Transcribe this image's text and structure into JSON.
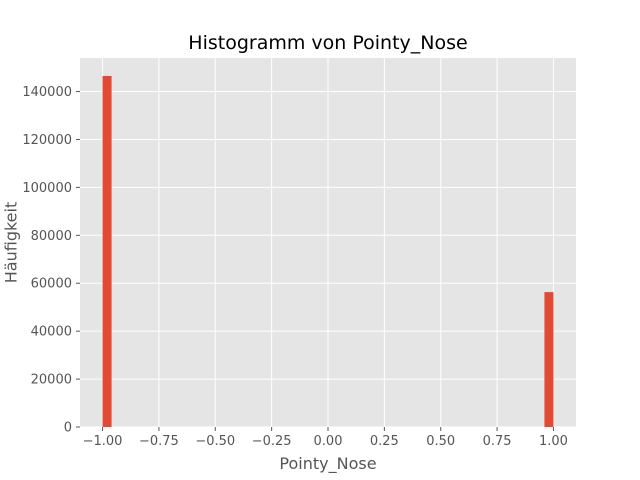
{
  "chart_data": {
    "type": "bar",
    "title": "Histogramm von Pointy_Nose",
    "xlabel": "Pointy_Nose",
    "ylabel": "Häufigkeit",
    "xlim": [
      -1.1,
      1.1
    ],
    "ylim": [
      0,
      154000
    ],
    "xticks": [
      -1.0,
      -0.75,
      -0.5,
      -0.25,
      0.0,
      0.25,
      0.5,
      0.75,
      1.0
    ],
    "xtick_labels": [
      "−1.00",
      "−0.75",
      "−0.50",
      "−0.25",
      "0.00",
      "0.25",
      "0.50",
      "0.75",
      "1.00"
    ],
    "yticks": [
      0,
      20000,
      40000,
      60000,
      80000,
      100000,
      120000,
      140000
    ],
    "ytick_labels": [
      "0",
      "20000",
      "40000",
      "60000",
      "80000",
      "100000",
      "120000",
      "140000"
    ],
    "bins": [
      {
        "x0": -1.0,
        "x1": -0.96,
        "value": 146500
      },
      {
        "x0": 0.96,
        "x1": 1.0,
        "value": 56300
      }
    ],
    "grid": true,
    "style": "ggplot",
    "colors": {
      "bar": "#e24a33",
      "background": "#e5e5e5",
      "grid": "#ffffff"
    }
  }
}
